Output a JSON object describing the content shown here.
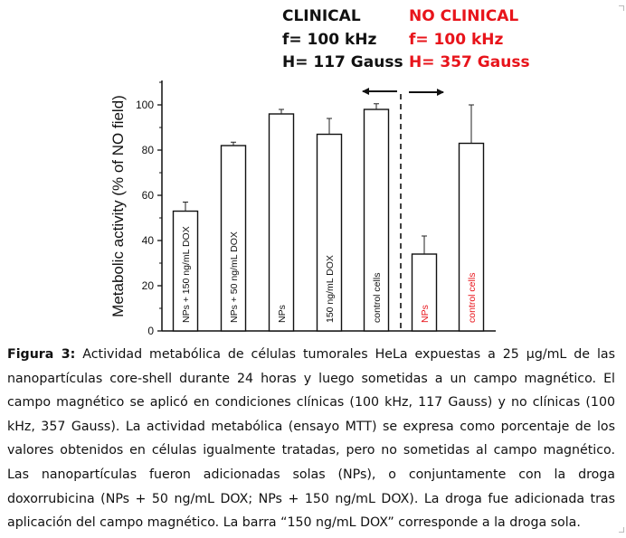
{
  "header": {
    "clinical": {
      "title": "CLINICAL",
      "freq": "f= 100 kHz",
      "field": "H= 117 Gauss"
    },
    "no_clinical": {
      "title": "NO CLINICAL",
      "freq": "f= 100 kHz",
      "field": "H= 357 Gauss"
    }
  },
  "colors": {
    "clinical_text": "#111111",
    "no_clinical_text": "#e8141b"
  },
  "chart_data": {
    "type": "bar",
    "ylabel": "Metabolic activity (% of NO field)",
    "ylim": [
      0,
      110
    ],
    "yticks": [
      0,
      20,
      40,
      60,
      80,
      100
    ],
    "categories": [
      "NPs + 150 ng/mL DOX",
      "NPs + 50 ng/mL DOX",
      "NPs",
      "150 ng/mL DOX",
      "control cells",
      "NPs",
      "control cells"
    ],
    "values": [
      53,
      82,
      96,
      87,
      98,
      34,
      83
    ],
    "errors": [
      4,
      1.5,
      2,
      7,
      2.5,
      8,
      17
    ],
    "groups": [
      "clinical",
      "clinical",
      "clinical",
      "clinical",
      "clinical",
      "no_clinical",
      "no_clinical"
    ],
    "label_colors": [
      "#111111",
      "#111111",
      "#111111",
      "#111111",
      "#111111",
      "#e8141b",
      "#e8141b"
    ],
    "divider": "dashed line between control cells and NPs",
    "arrows": [
      "left",
      "right"
    ],
    "grid": false
  },
  "caption": {
    "label": "Figura 3:",
    "text": "Actividad metabólica de células tumorales HeLa expuestas a 25 µg/mL de las nanopartículas core-shell durante 24 horas y luego sometidas a un campo magnético. El campo magnético se aplicó en condiciones clínicas (100 kHz, 117 Gauss) y no clínicas (100 kHz, 357 Gauss). La actividad metabólica (ensayo MTT) se expresa como porcentaje de los valores obtenidos en células igualmente tratadas, pero no sometidas al campo magnético. Las nanopartículas fueron adicionadas solas (NPs), o conjuntamente con la droga doxorrubicina (NPs + 50 ng/mL DOX; NPs + 150 ng/mL DOX). La droga fue adicionada tras aplicación del campo magnético. La barra “150 ng/mL DOX” corresponde a la droga sola."
  }
}
